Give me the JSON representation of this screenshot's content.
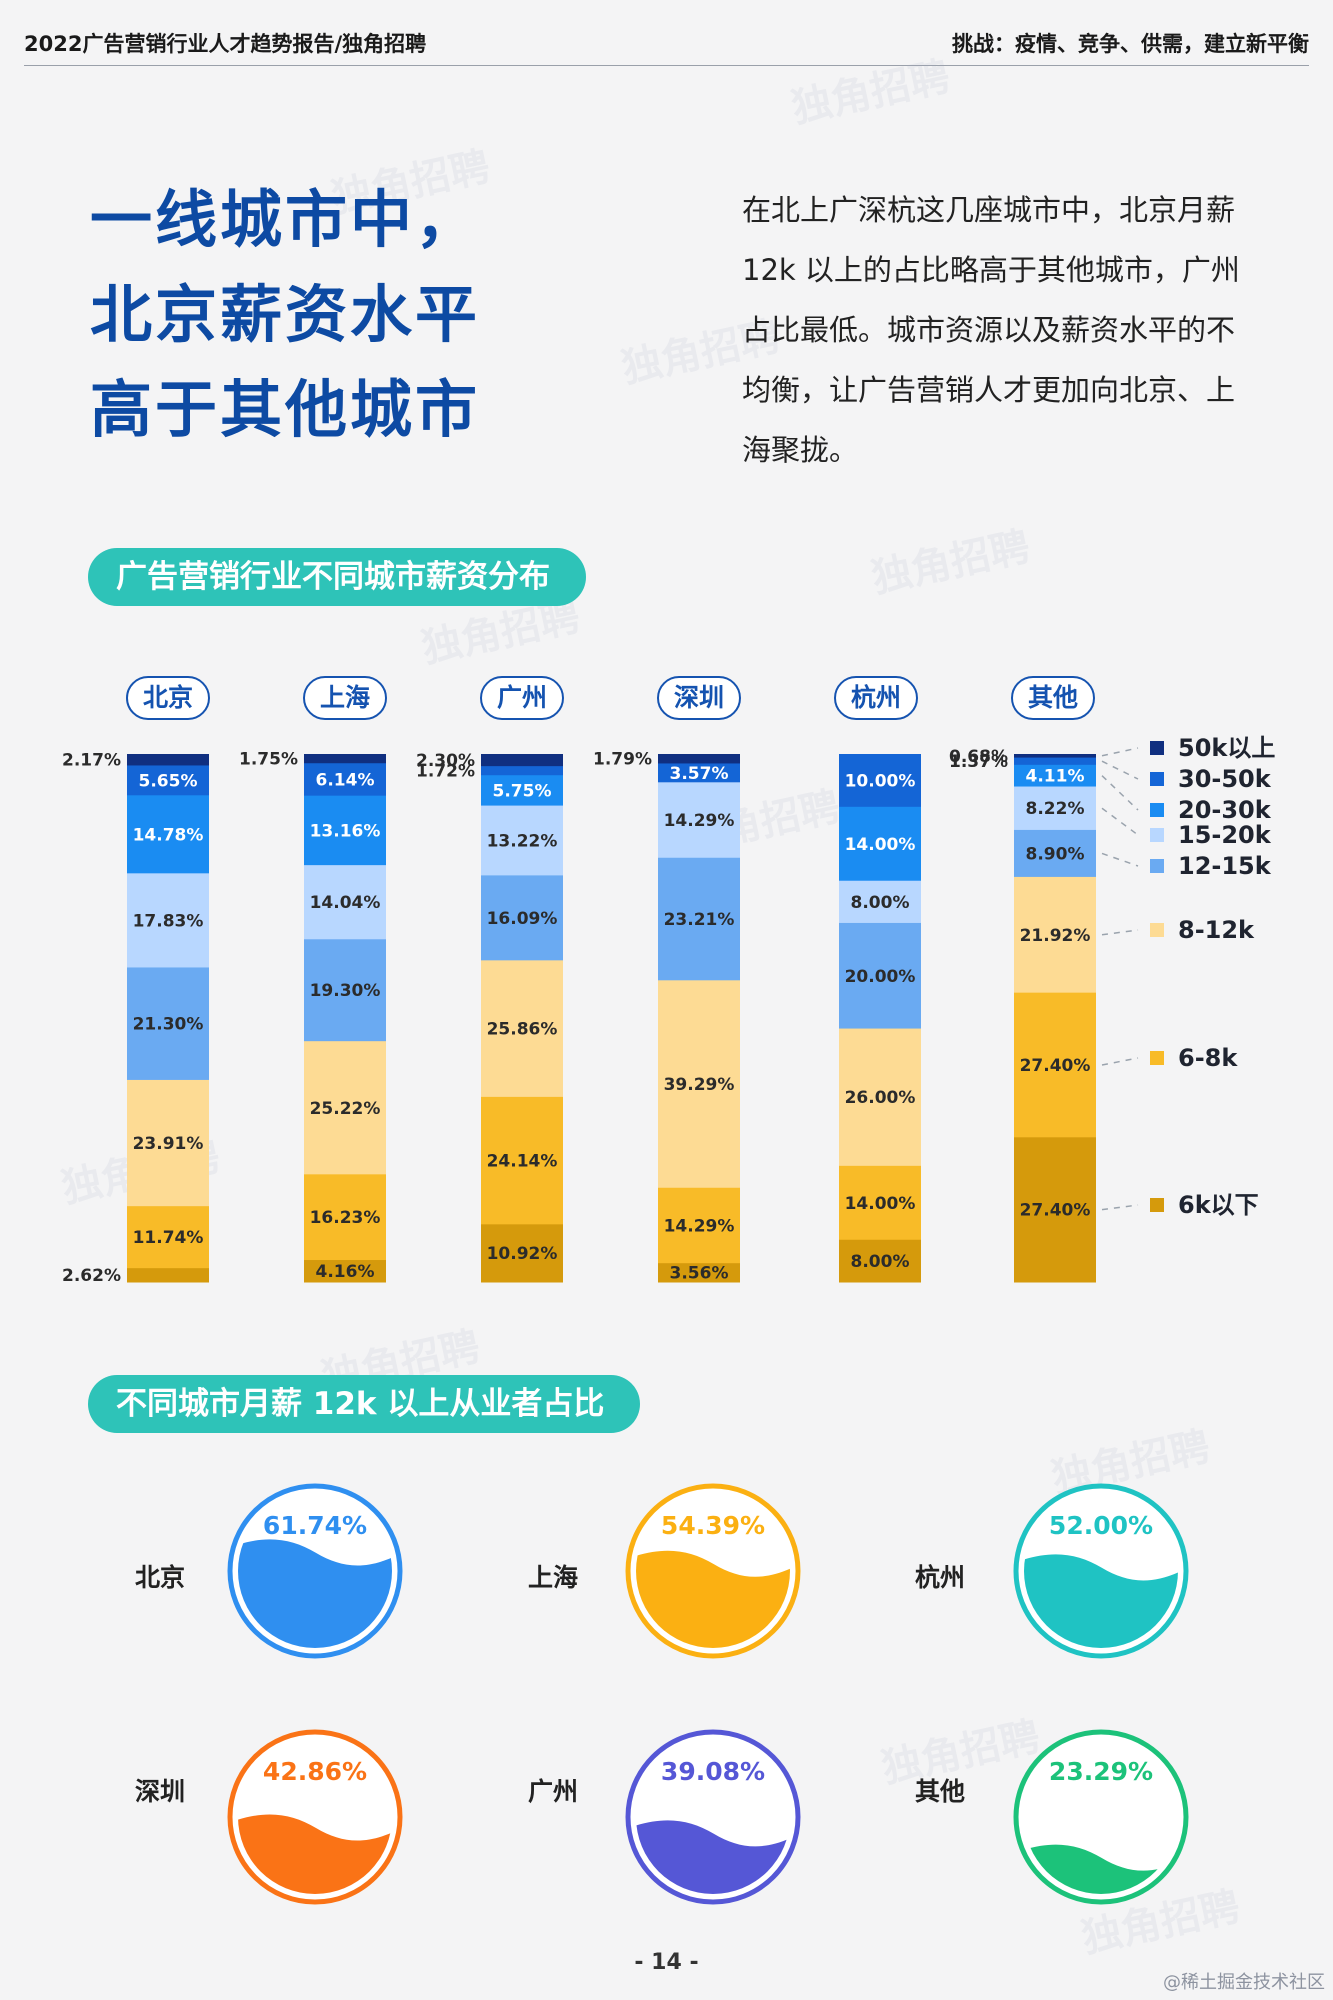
{
  "header": {
    "left": "2022广告营销行业人才趋势报告/独角招聘",
    "right": "挑战：疫情、竞争、供需，建立新平衡"
  },
  "watermark_text": "独角招聘",
  "headline": [
    "一线城市中，",
    "北京薪资水平",
    "高于其他城市"
  ],
  "intro": "在北上广深杭这几座城市中，北京月薪 12k 以上的占比略高于其他城市，广州占比最低。城市资源以及薪资水平的不均衡，让广告营销人才更加向北京、上海聚拢。",
  "section1_title": "广告营销行业不同城市薪资分布",
  "section2_title": "不同城市月薪 12k 以上从业者占比",
  "colors": {
    "50k以上": "#102f80",
    "30-50k": "#1465d6",
    "20-30k": "#1a8cf2",
    "15-20k": "#b8d7ff",
    "12-15k": "#6aaaf2",
    "8-12k": "#fddb94",
    "6-8k": "#f8bb28",
    "6k以下": "#d59a0c"
  },
  "chart_data": [
    {
      "type": "bar",
      "stacked": true,
      "title": "广告营销行业不同城市薪资分布",
      "categories": [
        "北京",
        "上海",
        "广州",
        "深圳",
        "杭州",
        "其他"
      ],
      "legend": [
        "50k以上",
        "30-50k",
        "20-30k",
        "15-20k",
        "12-15k",
        "8-12k",
        "6-8k",
        "6k以下"
      ],
      "legend_position": "right",
      "series": [
        {
          "name": "50k以上",
          "values": [
            2.17,
            1.75,
            2.3,
            1.79,
            0,
            0.68
          ]
        },
        {
          "name": "30-50k",
          "values": [
            5.65,
            6.14,
            1.72,
            3.57,
            10.0,
            1.37
          ]
        },
        {
          "name": "20-30k",
          "values": [
            14.78,
            13.16,
            5.75,
            0,
            14.0,
            4.11
          ]
        },
        {
          "name": "15-20k",
          "values": [
            17.83,
            14.04,
            13.22,
            14.29,
            8.0,
            8.22
          ]
        },
        {
          "name": "12-15k",
          "values": [
            21.3,
            19.3,
            16.09,
            23.21,
            20.0,
            8.9
          ]
        },
        {
          "name": "8-12k",
          "values": [
            23.91,
            25.22,
            25.86,
            39.29,
            26.0,
            21.92
          ]
        },
        {
          "name": "6-8k",
          "values": [
            11.74,
            16.23,
            24.14,
            14.29,
            14.0,
            27.4
          ]
        },
        {
          "name": "6k以下",
          "values": [
            2.62,
            4.16,
            10.92,
            3.56,
            8.0,
            27.4
          ]
        }
      ],
      "ylim": [
        0,
        100
      ]
    },
    {
      "type": "gauge",
      "title": "不同城市月薪 12k 以上从业者占比",
      "categories": [
        "北京",
        "上海",
        "杭州",
        "深圳",
        "广州",
        "其他"
      ],
      "values": [
        61.74,
        54.39,
        52.0,
        42.86,
        39.08,
        23.29
      ],
      "labels": [
        "61.74%",
        "54.39%",
        "52.00%",
        "42.86%",
        "39.08%",
        "23.29%"
      ],
      "colors": [
        "#2f8ff0",
        "#fbb012",
        "#1fc3c3",
        "#fa7316",
        "#5557d6",
        "#1cc27a"
      ]
    }
  ],
  "page_number": "- 14 -",
  "credit": "@稀土掘金技术社区"
}
